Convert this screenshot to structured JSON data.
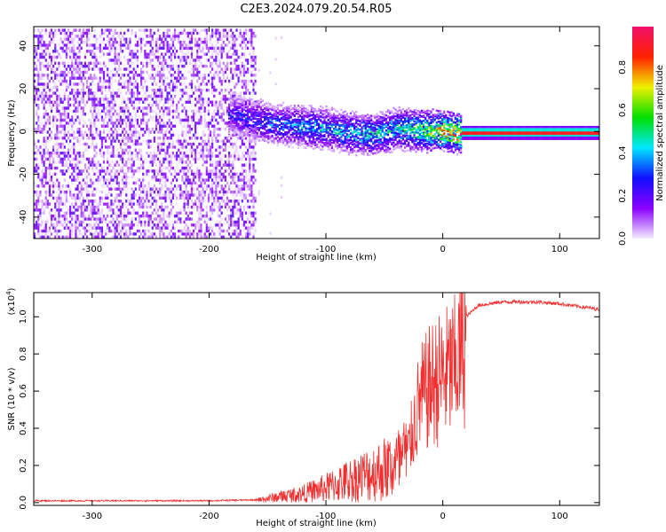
{
  "title": "C2E3.2024.079.20.54.R05",
  "chart_data": [
    {
      "type": "heatmap",
      "title": "C2E3.2024.079.20.54.R05",
      "xlabel": "Height of straight line (km)",
      "ylabel": "Frequency (Hz)",
      "xlim": [
        -350,
        134
      ],
      "ylim": [
        -50,
        49
      ],
      "xticks": [
        -300,
        -200,
        -100,
        0,
        100
      ],
      "xtick_labels": [
        "-300",
        "-200",
        "-100",
        "0",
        "100"
      ],
      "yticks": [
        -40,
        -20,
        0,
        20,
        40
      ],
      "ytick_labels": [
        "-40",
        "-20",
        "0",
        "20",
        "40"
      ],
      "colorbar": {
        "label": "Normalized spectral amplitude",
        "range": [
          0,
          1
        ],
        "ticks": [
          0.0,
          0.2,
          0.4,
          0.6,
          0.8
        ],
        "tick_labels": [
          "0.0",
          "0.2",
          "0.4",
          "0.6",
          "0.8"
        ],
        "colors": [
          "#f4ecff",
          "#8a00ff",
          "#1010ff",
          "#00e8ff",
          "#00e000",
          "#f0f000",
          "#ff2000",
          "#f0106a"
        ]
      },
      "noise_region_x": [
        -350,
        -160
      ],
      "ridge": {
        "x": [
          -185,
          -160,
          -140,
          -120,
          -100,
          -80,
          -60,
          -40,
          -20,
          0,
          15,
          50,
          134
        ],
        "freq": [
          9,
          6,
          4,
          3,
          2,
          0,
          -1,
          2,
          1,
          1,
          0,
          0,
          0
        ],
        "amplitude": [
          0.25,
          0.3,
          0.35,
          0.4,
          0.4,
          0.45,
          0.45,
          0.5,
          0.6,
          0.75,
          0.9,
          0.9,
          0.9
        ]
      }
    },
    {
      "type": "line",
      "xlabel": "Height of straight line (km)",
      "ylabel": "SNR (10 * v/v)",
      "yscale_label": "(x10",
      "yscale_exp": "4",
      "xlim": [
        -350,
        134
      ],
      "ylim": [
        -0.015,
        1.13
      ],
      "xticks": [
        -300,
        -200,
        -100,
        0,
        100
      ],
      "xtick_labels": [
        "-300",
        "-200",
        "-100",
        "0",
        "100"
      ],
      "yticks": [
        0.0,
        0.2,
        0.4,
        0.6,
        0.8,
        1.0
      ],
      "ytick_labels": [
        "0.0",
        "0.2",
        "0.4",
        "0.6",
        "0.8",
        "1.0"
      ],
      "series": [
        {
          "name": "SNR",
          "color": "#f03030",
          "x": [
            -350,
            -200,
            -160,
            -140,
            -120,
            -100,
            -80,
            -60,
            -40,
            -30,
            -20,
            -10,
            0,
            10,
            20,
            30,
            50,
            80,
            100,
            134
          ],
          "y": [
            0.01,
            0.01,
            0.015,
            0.04,
            0.06,
            0.1,
            0.15,
            0.2,
            0.25,
            0.3,
            0.6,
            0.7,
            0.75,
            0.8,
            1.0,
            1.06,
            1.08,
            1.08,
            1.07,
            1.04
          ]
        }
      ]
    }
  ]
}
